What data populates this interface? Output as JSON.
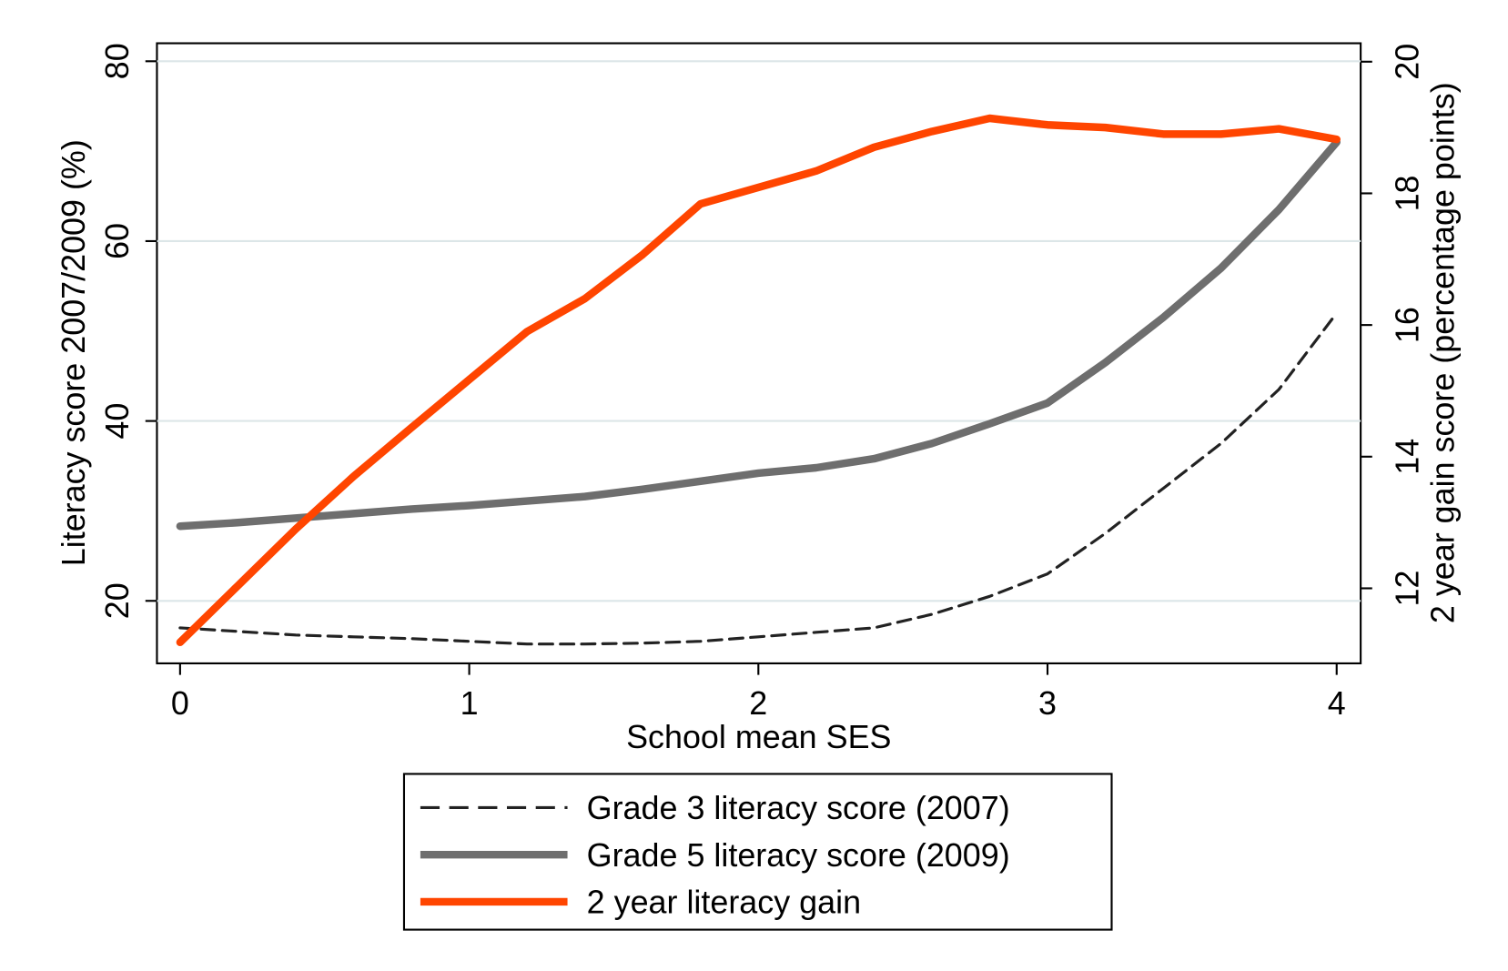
{
  "chart_data": {
    "type": "line",
    "x_label": "School mean SES",
    "y_label": "Literacy score 2007/2009 (%)",
    "y2_label": "2 year gain score (percentage points)",
    "x": [
      0,
      0.2,
      0.4,
      0.6,
      0.8,
      1.0,
      1.2,
      1.4,
      1.6,
      1.8,
      2.0,
      2.2,
      2.4,
      2.6,
      2.8,
      3.0,
      3.2,
      3.4,
      3.6,
      3.8,
      4.0
    ],
    "series": [
      {
        "name": "Grade 3 literacy score (2007)",
        "color": "#222222",
        "dash": true,
        "values": [
          17,
          16.6,
          16.2,
          16,
          15.8,
          15.5,
          15.2,
          15.2,
          15.3,
          15.5,
          16,
          16.5,
          17,
          18.5,
          20.5,
          23,
          27.5,
          32.5,
          37.5,
          43.5,
          52
        ]
      },
      {
        "name": "Grade 5 literacy score (2009)",
        "color": "#6e6e6e",
        "values": [
          28.3,
          28.7,
          29.2,
          29.7,
          30.2,
          30.6,
          31.1,
          31.6,
          32.4,
          33.3,
          34.2,
          34.8,
          35.8,
          37.5,
          39.7,
          42,
          46.5,
          51.5,
          57,
          63.5,
          71
        ]
      },
      {
        "name": "2 year literacy gain",
        "color": "#ff4500",
        "axis": "y2",
        "values": [
          11.18,
          12.04,
          12.9,
          13.7,
          14.44,
          15.17,
          15.9,
          16.4,
          17.07,
          17.84,
          18.09,
          18.34,
          18.7,
          18.94,
          19.14,
          19.04,
          19.0,
          18.9,
          18.9,
          18.98,
          18.82
        ]
      }
    ],
    "xlim": [
      -0.08,
      4.083
    ],
    "xticks": [
      0,
      1,
      2,
      3,
      4
    ],
    "ylim": [
      13.05,
      82
    ],
    "yticks": [
      20,
      40,
      60,
      80
    ],
    "y2lim": [
      10.86,
      20.28
    ],
    "y2ticks": [
      12,
      14,
      16,
      18,
      20
    ],
    "y2color": "#ff4500",
    "grid": true,
    "legend": "bottom"
  }
}
